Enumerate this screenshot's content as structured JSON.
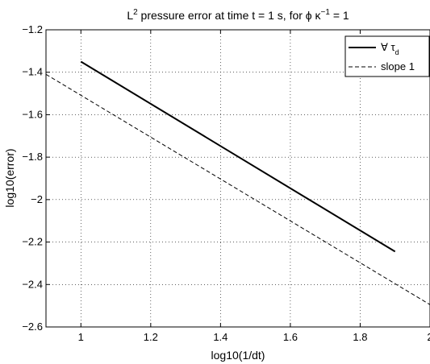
{
  "chart_data": {
    "type": "line",
    "title": {
      "prefix": "L",
      "sup": "2",
      "middle": " pressure error at time t = 1 s, for ϕ κ",
      "sup2": "−1",
      "suffix": " = 1"
    },
    "xlabel": "log10(1/dt)",
    "ylabel": "log10(error)",
    "xlim": [
      0.9,
      2.0
    ],
    "ylim": [
      -2.6,
      -1.2
    ],
    "xticks": [
      1,
      1.2,
      1.4,
      1.6,
      1.8,
      2
    ],
    "xtick_labels": [
      "1",
      "1.2",
      "1.4",
      "1.6",
      "1.8",
      "2"
    ],
    "yticks": [
      -1.2,
      -1.4,
      -1.6,
      -1.8,
      -2,
      -2.2,
      -2.4,
      -2.6
    ],
    "ytick_labels": [
      "−1.2",
      "−1.4",
      "−1.6",
      "−1.8",
      "−2",
      "−2.2",
      "−2.4",
      "−2.6"
    ],
    "grid": true,
    "legend_position": "top-right",
    "series": [
      {
        "legend_symbol": "∀ τ",
        "legend_sub": "d",
        "style": "solid",
        "color": "#000000",
        "x": [
          1.0,
          1.9
        ],
        "y": [
          -1.35,
          -2.245
        ]
      },
      {
        "name": "slope 1",
        "style": "dashed",
        "color": "#000000",
        "x": [
          0.9,
          2.0
        ],
        "y": [
          -1.41,
          -2.495
        ]
      }
    ]
  }
}
